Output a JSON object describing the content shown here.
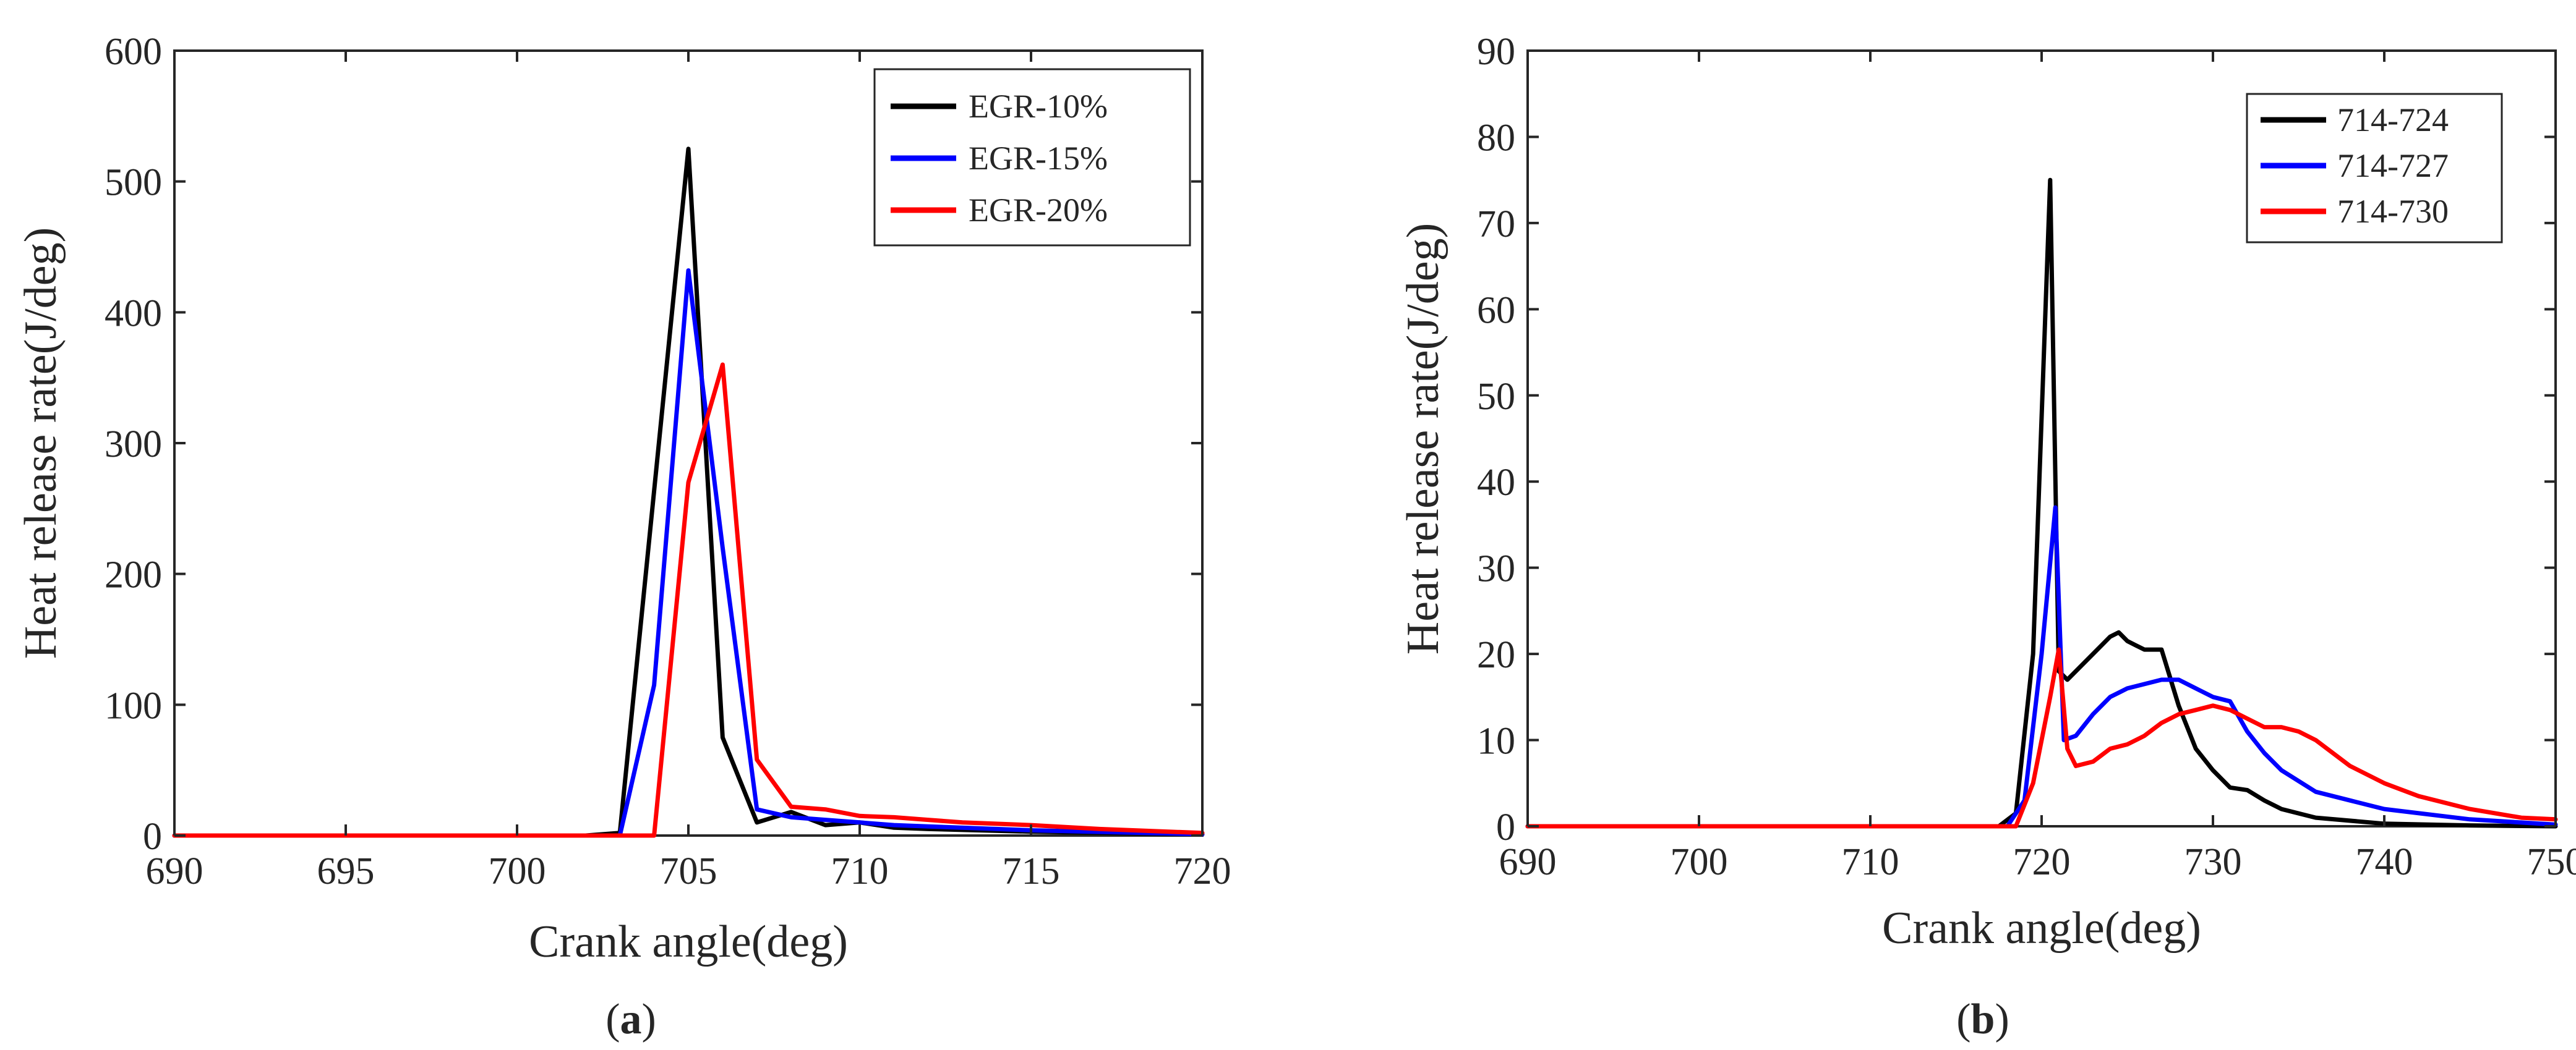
{
  "figure": {
    "panels": [
      {
        "label_open": "(",
        "label_letter": "a",
        "label_close": ")"
      },
      {
        "label_open": "(",
        "label_letter": "b",
        "label_close": ")"
      }
    ]
  },
  "chart_data": [
    {
      "type": "line",
      "title": "",
      "xlabel": "Crank angle(deg)",
      "ylabel": "Heat release rate(J/deg)",
      "xlim": [
        690,
        720
      ],
      "ylim": [
        0,
        600
      ],
      "xticks": [
        690,
        695,
        700,
        705,
        710,
        715,
        720
      ],
      "yticks": [
        0,
        100,
        200,
        300,
        400,
        500,
        600
      ],
      "grid": false,
      "legend_position": "top-right",
      "series": [
        {
          "name": "EGR-10%",
          "color": "#000000",
          "x": [
            690,
            702,
            703,
            705,
            706,
            707,
            708,
            709,
            710,
            711,
            712,
            715,
            720
          ],
          "y": [
            0,
            0,
            2,
            525,
            75,
            10,
            18,
            8,
            10,
            6,
            5,
            3,
            1
          ]
        },
        {
          "name": "EGR-15%",
          "color": "#0000FF",
          "x": [
            690,
            703,
            704,
            705,
            706,
            707,
            708,
            709,
            710,
            711,
            712,
            715,
            720
          ],
          "y": [
            0,
            0,
            115,
            432,
            220,
            20,
            14,
            12,
            10,
            8,
            7,
            4,
            1
          ]
        },
        {
          "name": "EGR-20%",
          "color": "#FF0000",
          "x": [
            690,
            704,
            705,
            706,
            707,
            708,
            709,
            710,
            711,
            712,
            713,
            715,
            717,
            720
          ],
          "y": [
            0,
            0,
            270,
            360,
            58,
            22,
            20,
            15,
            14,
            12,
            10,
            8,
            5,
            2
          ]
        }
      ]
    },
    {
      "type": "line",
      "title": "",
      "xlabel": "Crank angle(deg)",
      "ylabel": "Heat release rate(J/deg)",
      "xlim": [
        690,
        750
      ],
      "ylim": [
        0,
        90
      ],
      "xticks": [
        690,
        700,
        710,
        720,
        730,
        740,
        750
      ],
      "yticks": [
        0,
        10,
        20,
        30,
        40,
        50,
        60,
        70,
        80,
        90
      ],
      "grid": false,
      "legend_position": "top-right",
      "series": [
        {
          "name": "714-724",
          "color": "#000000",
          "x": [
            690,
            717.5,
            718.5,
            719.5,
            720.5,
            721,
            721.5,
            722,
            723,
            724,
            724.5,
            725,
            725.5,
            726,
            727,
            728,
            729,
            730,
            731,
            732,
            733,
            734,
            736,
            740,
            745,
            750
          ],
          "y": [
            0,
            0,
            1.5,
            20,
            75,
            18,
            17,
            18,
            20,
            22,
            22.5,
            21.5,
            21,
            20.5,
            20.5,
            14,
            9,
            6.5,
            4.5,
            4.2,
            3,
            2,
            1,
            0.3,
            0.1,
            0
          ]
        },
        {
          "name": "714-727",
          "color": "#0000FF",
          "x": [
            690,
            718,
            719,
            720,
            720.8,
            721.3,
            722,
            723,
            724,
            725,
            726,
            727,
            728,
            729,
            730,
            731,
            732,
            733,
            734,
            736,
            738,
            740,
            745,
            750
          ],
          "y": [
            0,
            0,
            3,
            20,
            37,
            10,
            10.5,
            13,
            15,
            16,
            16.5,
            17,
            17,
            16,
            15,
            14.5,
            11,
            8.5,
            6.5,
            4,
            3,
            2,
            0.8,
            0.2
          ]
        },
        {
          "name": "714-730",
          "color": "#FF0000",
          "x": [
            690,
            718.5,
            719.5,
            720.5,
            721,
            721.5,
            722,
            723,
            724,
            725,
            726,
            727,
            728,
            729,
            730,
            731,
            732,
            733,
            734,
            735,
            736,
            738,
            740,
            742,
            745,
            748,
            750
          ],
          "y": [
            0,
            0,
            5,
            15,
            20.5,
            9,
            7,
            7.5,
            9,
            9.5,
            10.5,
            12,
            13,
            13.5,
            14,
            13.5,
            12.5,
            11.5,
            11.5,
            11,
            10,
            7,
            5,
            3.5,
            2,
            1,
            0.8
          ]
        }
      ]
    }
  ]
}
